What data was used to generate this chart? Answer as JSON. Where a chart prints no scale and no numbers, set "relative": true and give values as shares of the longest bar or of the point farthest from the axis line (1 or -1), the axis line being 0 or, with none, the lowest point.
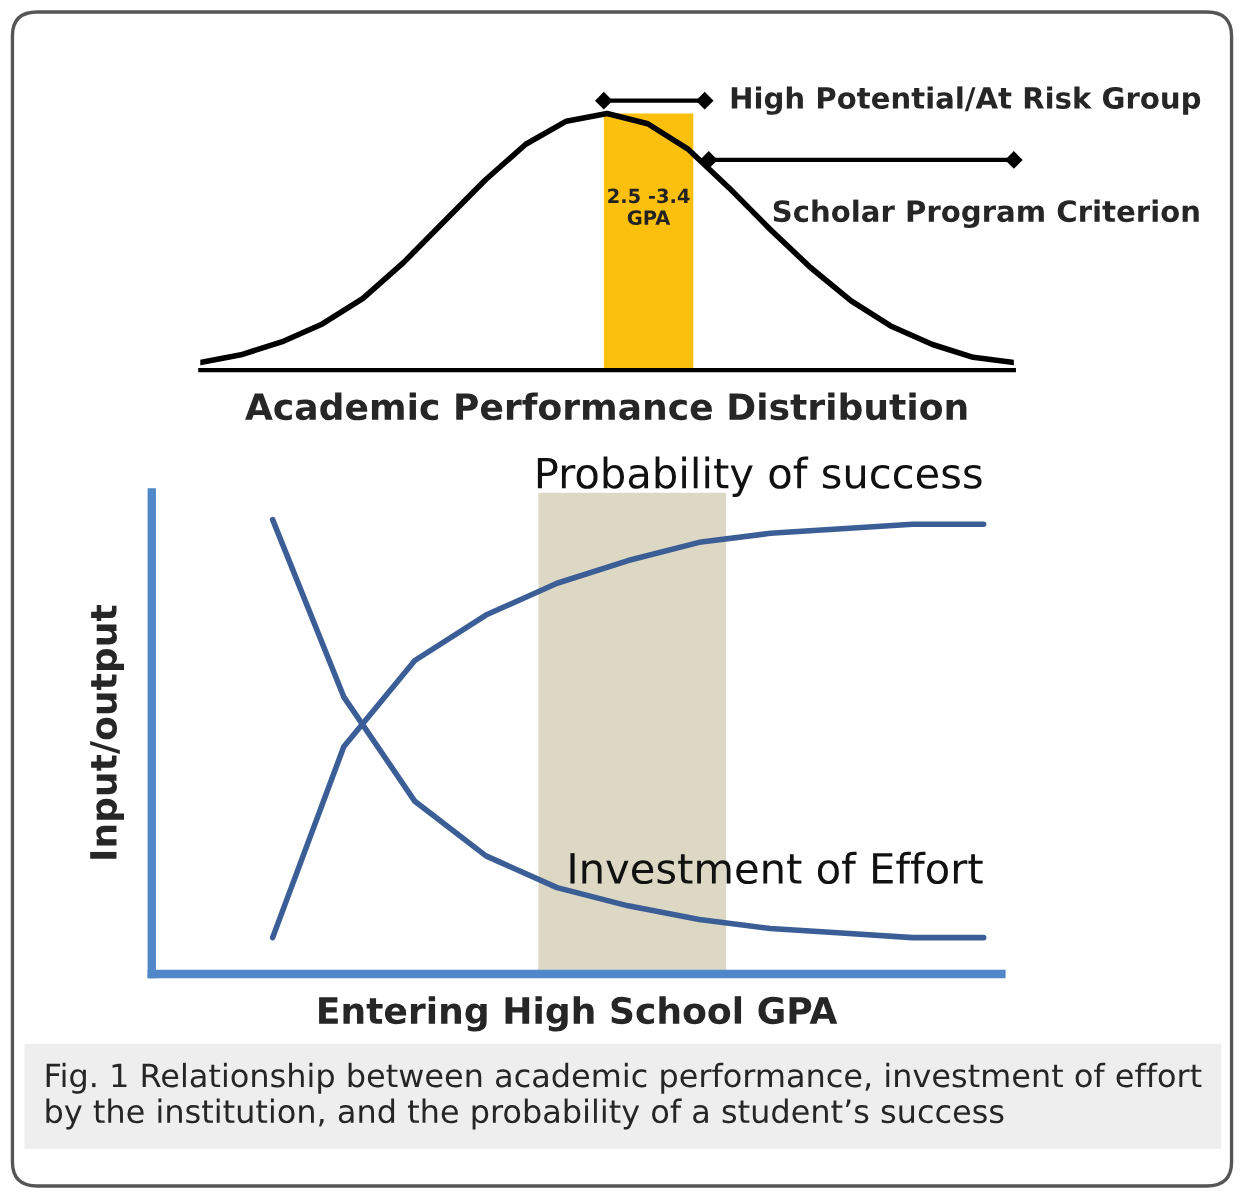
{
  "chart_data": [
    {
      "type": "line",
      "relative": true,
      "xlabel": "Academic Performance Distribution",
      "tick_labels": false,
      "legend": false,
      "categories": [
        null,
        null,
        null,
        null,
        null,
        null,
        null,
        null,
        null,
        null,
        null,
        null,
        null,
        null,
        null,
        null,
        null,
        null,
        null,
        null,
        null
      ],
      "series": [
        {
          "color": "#000000",
          "values": [
            0.03,
            0.06,
            0.11,
            0.18,
            0.28,
            0.42,
            0.58,
            0.74,
            0.88,
            0.97,
            1.0,
            0.96,
            0.86,
            0.71,
            0.55,
            0.4,
            0.27,
            0.17,
            0.1,
            0.05,
            0.03
          ]
        }
      ],
      "annotations": [
        "High Potential/At Risk Group",
        "Scholar Program Criterion",
        "2.5 -3.4\nGPA"
      ]
    },
    {
      "type": "line",
      "relative": true,
      "xlabel": "Entering High School GPA",
      "ylabel": "Input/output",
      "tick_labels": false,
      "legend": false,
      "categories": [
        null,
        null,
        null,
        null,
        null,
        null,
        null,
        null,
        null,
        null,
        null
      ],
      "series": [
        {
          "name": "Probability of success",
          "color": "#3b5e96",
          "values": [
            0.08,
            0.5,
            0.69,
            0.79,
            0.86,
            0.91,
            0.95,
            0.97,
            0.98,
            0.99,
            0.99
          ]
        },
        {
          "name": "Investment of Effort",
          "color": "#3b5e96",
          "values": [
            1.0,
            0.61,
            0.38,
            0.26,
            0.19,
            0.15,
            0.12,
            0.1,
            0.09,
            0.08,
            0.08
          ]
        }
      ],
      "annotations": [
        "Fig. 1 Relationship between academic performance, investment of effort by the institution, and the probability of a student’s success"
      ]
    }
  ]
}
